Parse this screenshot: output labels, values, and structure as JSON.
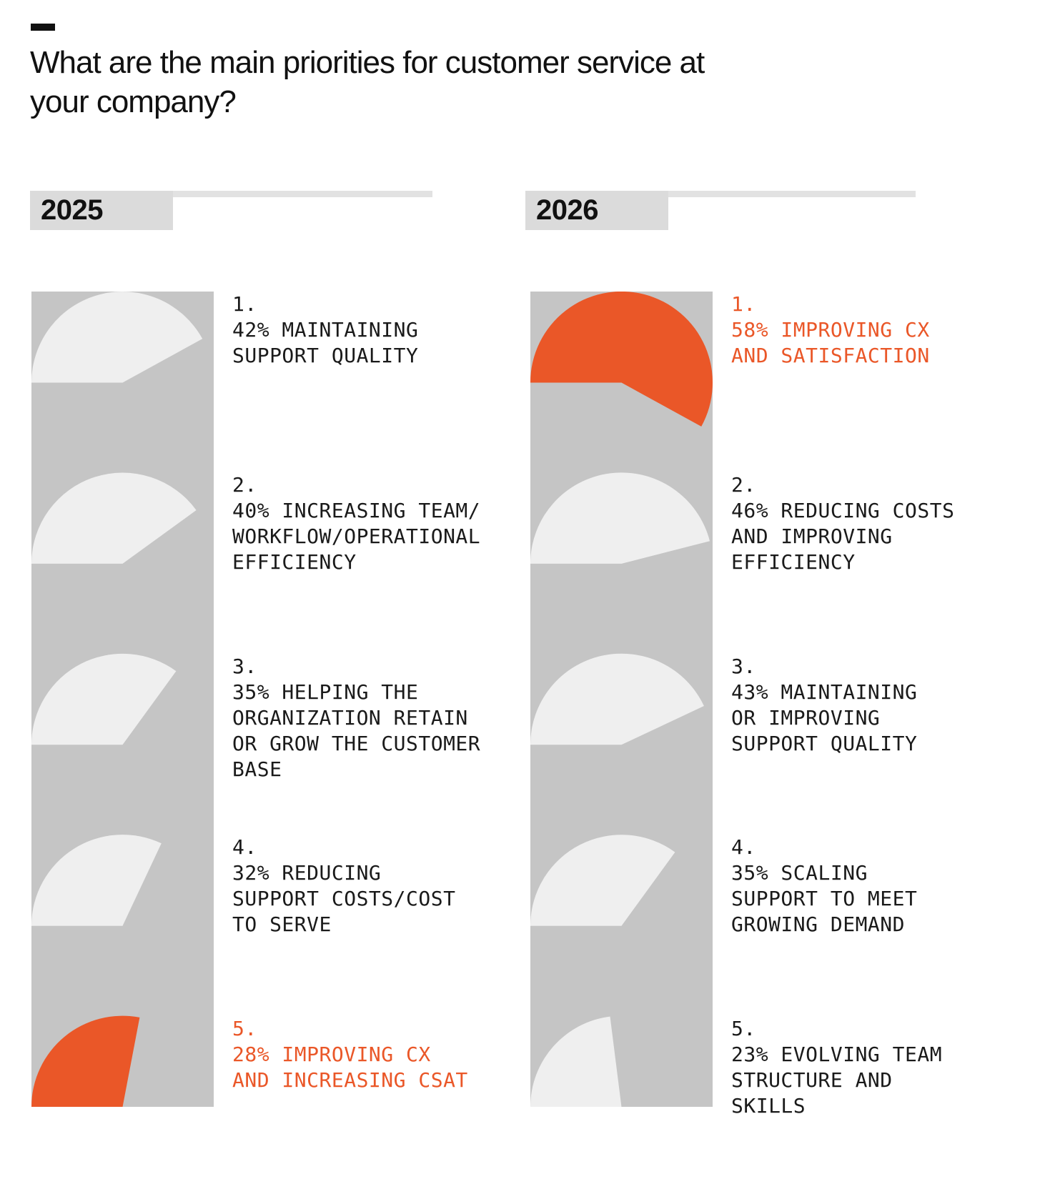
{
  "title": "What are the main priorities for customer service at\nyour company?",
  "colors": {
    "accent": "#EA5728",
    "band": "#C5C5C5",
    "slice": "#EFEFEF",
    "header_box": "#DBDBDB",
    "header_strip": "#E2E2E2",
    "text": "#1A1A1A"
  },
  "columns": [
    {
      "year": "2025",
      "items": [
        {
          "rank": "1.",
          "pct": 42,
          "label": "42% MAINTAINING\nSUPPORT QUALITY",
          "highlight": false
        },
        {
          "rank": "2.",
          "pct": 40,
          "label": "40% INCREASING TEAM/\nWORKFLOW/OPERATIONAL\nEFFICIENCY",
          "highlight": false
        },
        {
          "rank": "3.",
          "pct": 35,
          "label": "35% HELPING THE\nORGANIZATION RETAIN\nOR GROW THE CUSTOMER\nBASE",
          "highlight": false
        },
        {
          "rank": "4.",
          "pct": 32,
          "label": "32% REDUCING\nSUPPORT COSTS/COST\nTO SERVE",
          "highlight": false
        },
        {
          "rank": "5.",
          "pct": 28,
          "label": "28% IMPROVING CX\nAND INCREASING CSAT",
          "highlight": true
        }
      ]
    },
    {
      "year": "2026",
      "items": [
        {
          "rank": "1.",
          "pct": 58,
          "label": "58% IMPROVING CX\nAND SATISFACTION",
          "highlight": true
        },
        {
          "rank": "2.",
          "pct": 46,
          "label": "46% REDUCING COSTS\nAND IMPROVING\nEFFICIENCY",
          "highlight": false
        },
        {
          "rank": "3.",
          "pct": 43,
          "label": "43% MAINTAINING\nOR IMPROVING\nSUPPORT QUALITY",
          "highlight": false
        },
        {
          "rank": "4.",
          "pct": 35,
          "label": "35% SCALING\nSUPPORT TO MEET\nGROWING DEMAND",
          "highlight": false
        },
        {
          "rank": "5.",
          "pct": 23,
          "label": "23% EVOLVING TEAM\nSTRUCTURE AND\nSKILLS",
          "highlight": false
        }
      ]
    }
  ],
  "chart_data": [
    {
      "type": "pie",
      "title": "2025",
      "unit": "percent of respondents",
      "categories": [
        "MAINTAINING SUPPORT QUALITY",
        "INCREASING TEAM/WORKFLOW/OPERATIONAL EFFICIENCY",
        "HELPING THE ORGANIZATION RETAIN OR GROW THE CUSTOMER BASE",
        "REDUCING SUPPORT COSTS/COST TO SERVE",
        "IMPROVING CX AND INCREASING CSAT"
      ],
      "values": [
        42,
        40,
        35,
        32,
        28
      ],
      "ranks": [
        1,
        2,
        3,
        4,
        5
      ],
      "highlight_category": "IMPROVING CX AND INCREASING CSAT",
      "note": "Each value drawn as a circular sector sweeping value% of 360 degrees, starting horizontal-left and sweeping clockwise over the top; highlighted sector in orange, others light gray on a gray band"
    },
    {
      "type": "pie",
      "title": "2026",
      "unit": "percent of respondents",
      "categories": [
        "IMPROVING CX AND SATISFACTION",
        "REDUCING COSTS AND IMPROVING EFFICIENCY",
        "MAINTAINING OR IMPROVING SUPPORT QUALITY",
        "SCALING SUPPORT TO MEET GROWING DEMAND",
        "EVOLVING TEAM STRUCTURE AND SKILLS"
      ],
      "values": [
        58,
        46,
        43,
        35,
        23
      ],
      "ranks": [
        1,
        2,
        3,
        4,
        5
      ],
      "highlight_category": "IMPROVING CX AND SATISFACTION",
      "note": "Each value drawn as a circular sector sweeping value% of 360 degrees, starting horizontal-left and sweeping clockwise over the top; highlighted sector in orange, others light gray on a gray band"
    }
  ]
}
